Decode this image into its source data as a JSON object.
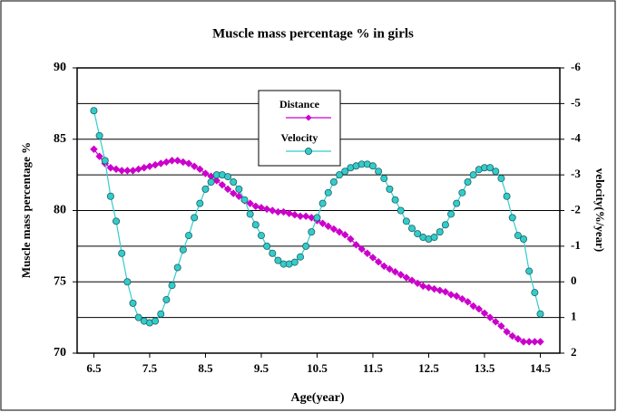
{
  "chart_data": {
    "type": "line",
    "title": "Muscle mass percentage % in girls",
    "x_label": "Age(year)",
    "y_label": "Muscle mass percentage %",
    "y2_label": "velocity(%/year)",
    "x": [
      6.5,
      6.6,
      6.7,
      6.8,
      6.9,
      7.0,
      7.1,
      7.2,
      7.3,
      7.4,
      7.5,
      7.6,
      7.7,
      7.8,
      7.9,
      8.0,
      8.1,
      8.2,
      8.3,
      8.4,
      8.5,
      8.6,
      8.7,
      8.8,
      8.9,
      9.0,
      9.1,
      9.2,
      9.3,
      9.4,
      9.5,
      9.6,
      9.7,
      9.8,
      9.9,
      10.0,
      10.1,
      10.2,
      10.3,
      10.4,
      10.5,
      10.6,
      10.7,
      10.8,
      10.9,
      11.0,
      11.1,
      11.2,
      11.3,
      11.4,
      11.5,
      11.6,
      11.7,
      11.8,
      11.9,
      12.0,
      12.1,
      12.2,
      12.3,
      12.4,
      12.5,
      12.6,
      12.7,
      12.8,
      12.9,
      13.0,
      13.1,
      13.2,
      13.3,
      13.4,
      13.5,
      13.6,
      13.7,
      13.8,
      13.9,
      14.0,
      14.1,
      14.2,
      14.3,
      14.4,
      14.5
    ],
    "series": [
      {
        "name": "Distance",
        "color": "#cc00cc",
        "marker": "diamond",
        "values": [
          84.3,
          83.8,
          83.3,
          83.0,
          82.9,
          82.8,
          82.8,
          82.8,
          82.9,
          83.0,
          83.1,
          83.2,
          83.3,
          83.4,
          83.5,
          83.5,
          83.4,
          83.3,
          83.1,
          82.9,
          82.6,
          82.4,
          82.1,
          81.8,
          81.5,
          81.2,
          81.0,
          80.7,
          80.5,
          80.3,
          80.2,
          80.1,
          80.0,
          79.9,
          79.9,
          79.8,
          79.7,
          79.6,
          79.6,
          79.5,
          79.3,
          79.1,
          78.9,
          78.7,
          78.5,
          78.3,
          78.0,
          77.6,
          77.3,
          77.0,
          76.7,
          76.4,
          76.1,
          75.9,
          75.7,
          75.5,
          75.3,
          75.1,
          74.9,
          74.7,
          74.6,
          74.5,
          74.4,
          74.3,
          74.1,
          74.0,
          73.8,
          73.6,
          73.3,
          73.1,
          72.8,
          72.5,
          72.2,
          71.9,
          71.5,
          71.2,
          71.0,
          70.8,
          70.8,
          70.8,
          70.8
        ]
      },
      {
        "name": "Velocity",
        "color": "#33cccc",
        "marker": "circle",
        "axis": "y2",
        "values": [
          -4.8,
          -4.1,
          -3.4,
          -2.4,
          -1.7,
          -0.8,
          0.0,
          0.6,
          1.0,
          1.1,
          1.15,
          1.1,
          0.9,
          0.5,
          0.1,
          -0.4,
          -0.9,
          -1.3,
          -1.8,
          -2.2,
          -2.6,
          -2.8,
          -3.0,
          -3.0,
          -2.95,
          -2.8,
          -2.6,
          -2.3,
          -1.9,
          -1.6,
          -1.3,
          -1.0,
          -0.8,
          -0.6,
          -0.5,
          -0.5,
          -0.55,
          -0.7,
          -1.0,
          -1.4,
          -1.8,
          -2.2,
          -2.5,
          -2.8,
          -3.0,
          -3.1,
          -3.2,
          -3.25,
          -3.3,
          -3.3,
          -3.25,
          -3.1,
          -2.9,
          -2.6,
          -2.3,
          -2.0,
          -1.7,
          -1.5,
          -1.35,
          -1.25,
          -1.2,
          -1.25,
          -1.4,
          -1.6,
          -1.9,
          -2.2,
          -2.5,
          -2.8,
          -3.0,
          -3.15,
          -3.2,
          -3.2,
          -3.1,
          -2.9,
          -2.4,
          -1.8,
          -1.3,
          -1.2,
          -0.3,
          0.3,
          0.9
        ]
      }
    ],
    "xlim": [
      6.2,
      14.85
    ],
    "xticks": [
      6.5,
      7.5,
      8.5,
      9.5,
      10.5,
      11.5,
      12.5,
      13.5,
      14.5
    ],
    "ylim": [
      70,
      90
    ],
    "yticks": [
      70,
      75,
      80,
      85,
      90
    ],
    "y2lim": [
      2,
      -6
    ],
    "y2ticks": [
      -6,
      -5,
      -4,
      -3,
      -2,
      -1,
      0,
      1,
      2
    ],
    "grid": true
  }
}
